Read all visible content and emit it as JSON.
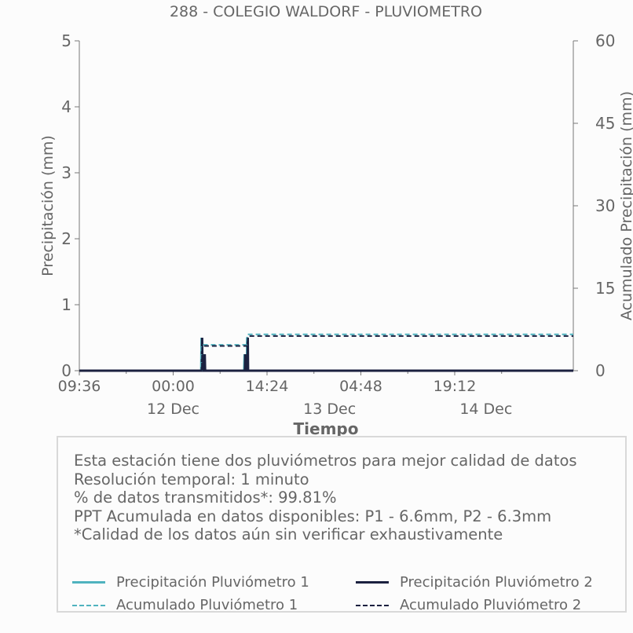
{
  "chart_data": {
    "type": "line",
    "title": "288 - COLEGIO WALDORF - PLUVIOMETRO",
    "xlabel": "Tiempo",
    "ylabel": "Precipitación (mm)",
    "y2label": "Acumulado Precipitación (mm)",
    "x_unit": "hours from 11 Dec 09:36",
    "xlim": [
      0,
      75.8
    ],
    "ylim": [
      0,
      5
    ],
    "y2lim": [
      0,
      60
    ],
    "x_ticks": [
      {
        "x": 0,
        "label": "09:36"
      },
      {
        "x": 14.4,
        "label": "00:00"
      },
      {
        "x": 28.8,
        "label": "14:24"
      },
      {
        "x": 43.2,
        "label": "04:48"
      },
      {
        "x": 57.6,
        "label": "19:12"
      }
    ],
    "x_minor_ticks": [
      7.2,
      21.6,
      36,
      50.4,
      64.8
    ],
    "day_labels": [
      {
        "x": 14.4,
        "label": "12 Dec"
      },
      {
        "x": 38.4,
        "label": "13 Dec"
      },
      {
        "x": 62.4,
        "label": "14 Dec"
      }
    ],
    "y_ticks": [
      0,
      1,
      2,
      3,
      4,
      5
    ],
    "y2_ticks": [
      0,
      15,
      30,
      45,
      60
    ],
    "grid": false,
    "series": [
      {
        "name": "Precipitación Pluviómetro 1",
        "axis": "left",
        "style": "solid",
        "color": "#4fb3bf",
        "x": [
          0,
          18.7,
          18.75,
          18.8,
          19.1,
          19.15,
          19.2,
          25.3,
          25.35,
          25.4,
          25.7,
          25.75,
          25.8,
          75.8
        ],
        "y": [
          0,
          0,
          0.5,
          0,
          0,
          0.25,
          0,
          0,
          0.25,
          0,
          0,
          0.5,
          0,
          0
        ]
      },
      {
        "name": "Precipitación Pluviómetro 2",
        "axis": "left",
        "style": "solid",
        "color": "#1b2140",
        "x": [
          0,
          18.8,
          18.85,
          18.9,
          19.2,
          19.25,
          19.3,
          25.4,
          25.45,
          25.5,
          25.8,
          25.85,
          25.9,
          75.8
        ],
        "y": [
          0,
          0,
          0.5,
          0,
          0,
          0.25,
          0,
          0,
          0.25,
          0,
          0,
          0.5,
          0,
          0
        ]
      },
      {
        "name": "Acumulado Pluviómetro 1",
        "axis": "right",
        "style": "dashed",
        "color": "#4fb3bf",
        "x": [
          0,
          18.7,
          18.75,
          25.7,
          25.75,
          75.8
        ],
        "y": [
          0,
          0,
          4.7,
          4.7,
          6.6,
          6.6
        ]
      },
      {
        "name": "Acumulado Pluviómetro 2",
        "axis": "right",
        "style": "dashed",
        "color": "#1b2140",
        "x": [
          0,
          18.8,
          18.85,
          25.8,
          25.85,
          75.8
        ],
        "y": [
          0,
          0,
          4.5,
          4.5,
          6.3,
          6.3
        ]
      }
    ],
    "legend_position": "bottom"
  },
  "info_lines": [
    "Esta estación tiene dos pluviómetros para mejor calidad de datos",
    "Resolución temporal: 1 minuto",
    "% de datos transmitidos*: 99.81%",
    "PPT Acumulada en datos disponibles: P1 - 6.6mm, P2 - 6.3mm",
    "*Calidad de los datos aún sin verificar exhaustivamente"
  ],
  "colors": {
    "p1": "#4fb3bf",
    "p2": "#1b2140",
    "text": "#666666",
    "axis": "#777777"
  }
}
